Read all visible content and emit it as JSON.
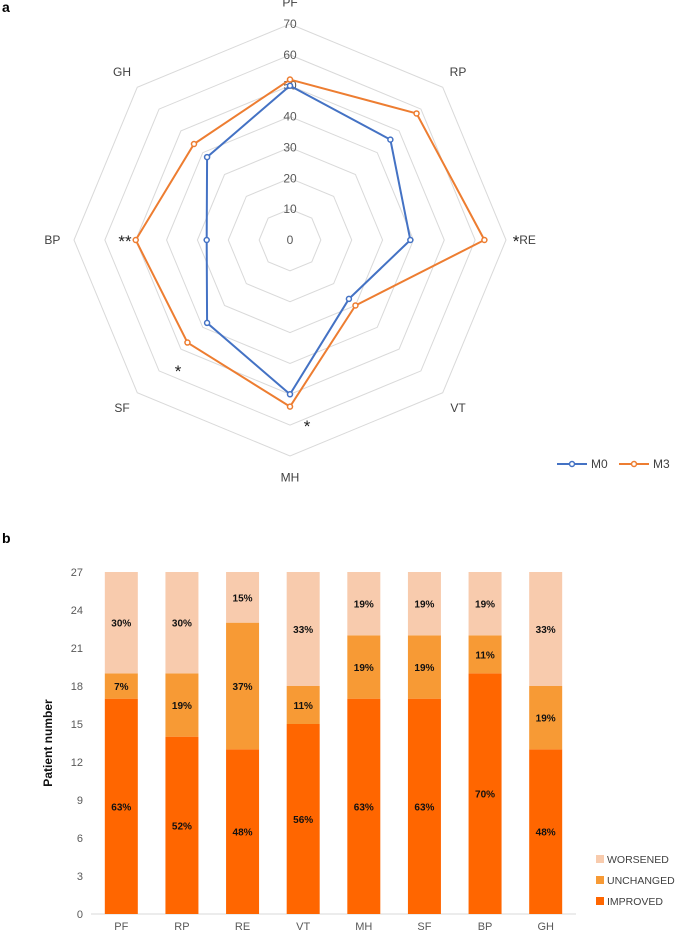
{
  "chart_data": [
    {
      "panel": "a",
      "type": "radar",
      "axes": [
        "PF",
        "RP",
        "RE",
        "VT",
        "MH",
        "SF",
        "BP",
        "GH"
      ],
      "rlim": [
        0,
        70
      ],
      "ticks": [
        0,
        10,
        20,
        30,
        40,
        50,
        60,
        70
      ],
      "series": [
        {
          "name": "M0",
          "color": "#4472C4",
          "values": [
            50,
            46,
            39,
            27,
            50,
            38,
            27,
            38
          ]
        },
        {
          "name": "M3",
          "color": "#ED7D31",
          "values": [
            52,
            58,
            63,
            30,
            54,
            47,
            50,
            44
          ]
        }
      ],
      "significance": {
        "RE": "*",
        "MH": "*",
        "SF": "*",
        "BP": "**"
      },
      "legend": "bottom-right"
    },
    {
      "panel": "b",
      "type": "bar",
      "stacked": true,
      "categories": [
        "PF",
        "RP",
        "RE",
        "VT",
        "MH",
        "SF",
        "BP",
        "GH"
      ],
      "ylabel": "Patient number",
      "ylim": [
        0,
        27
      ],
      "yticks": [
        0,
        3,
        6,
        9,
        12,
        15,
        18,
        21,
        24,
        27
      ],
      "series": [
        {
          "name": "IMPROVED",
          "color": "#FF6600",
          "values": [
            17,
            14,
            13,
            15,
            17,
            17,
            19,
            13
          ],
          "labels": [
            "63%",
            "52%",
            "48%",
            "56%",
            "63%",
            "63%",
            "70%",
            "48%"
          ]
        },
        {
          "name": "UNCHANGED",
          "color": "#F79A35",
          "values": [
            2,
            5,
            10,
            3,
            5,
            5,
            3,
            5
          ],
          "labels": [
            "7%",
            "19%",
            "37%",
            "11%",
            "19%",
            "19%",
            "11%",
            "19%"
          ]
        },
        {
          "name": "WORSENED",
          "color": "#F8CBAD",
          "values": [
            8,
            8,
            4,
            9,
            5,
            5,
            5,
            9
          ],
          "labels": [
            "30%",
            "30%",
            "15%",
            "33%",
            "19%",
            "19%",
            "19%",
            "33%"
          ]
        }
      ],
      "legend": "bottom-right"
    }
  ]
}
